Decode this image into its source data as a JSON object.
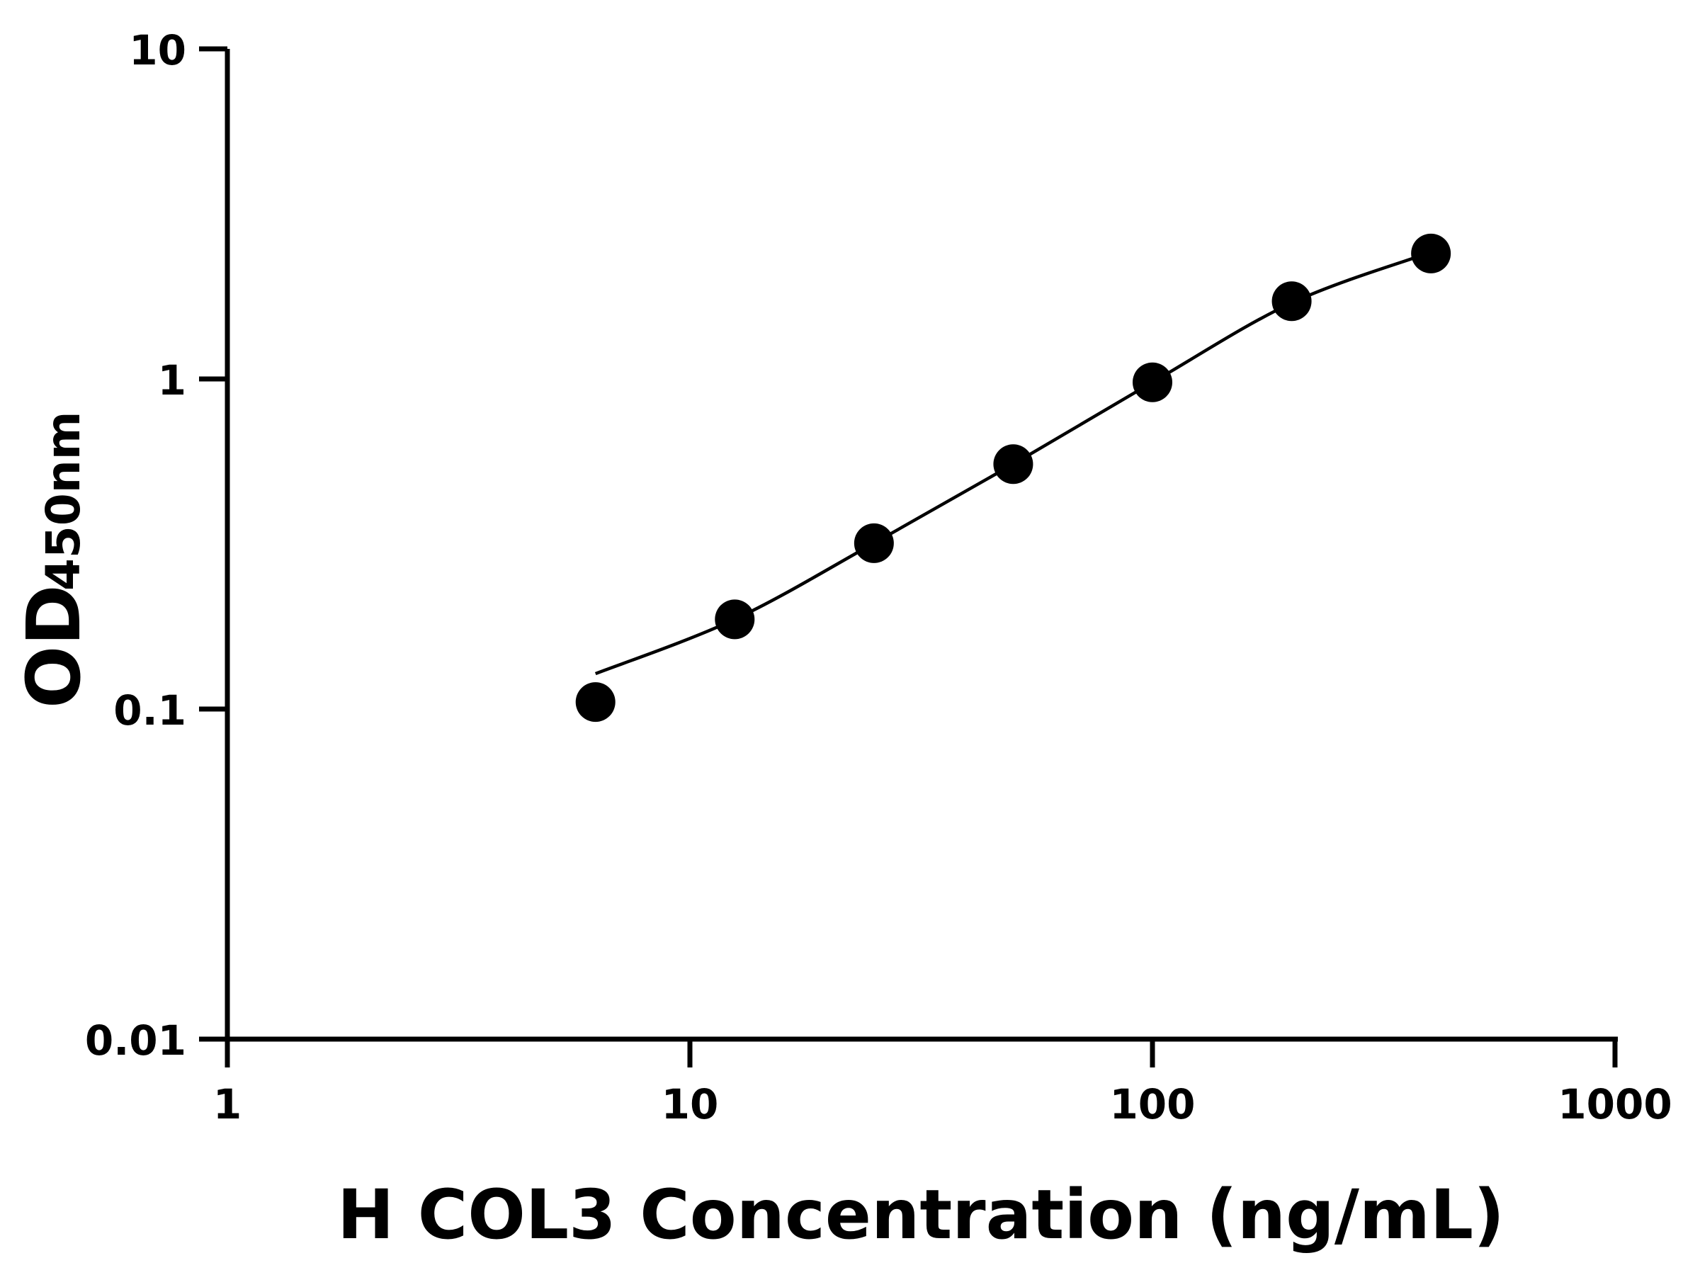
{
  "chart_data": {
    "type": "scatter",
    "title": "",
    "xlabel": "H COL3 Concentration (ng/mL)",
    "ylabel_main": "OD",
    "ylabel_sub": "450nm",
    "x_scale": "log",
    "y_scale": "log",
    "xlim": [
      1,
      1000
    ],
    "ylim": [
      0.01,
      10
    ],
    "x_ticks": [
      "1",
      "10",
      "100",
      "1000"
    ],
    "y_ticks": [
      "0.01",
      "0.1",
      "1",
      "10"
    ],
    "grid": false,
    "legend": "none",
    "color": "#000000",
    "points": [
      {
        "x": 6.25,
        "y": 0.105
      },
      {
        "x": 12.5,
        "y": 0.187
      },
      {
        "x": 25,
        "y": 0.318
      },
      {
        "x": 50,
        "y": 0.552
      },
      {
        "x": 100,
        "y": 0.977
      },
      {
        "x": 200,
        "y": 1.72
      },
      {
        "x": 400,
        "y": 2.4
      }
    ],
    "fit_curve": [
      {
        "x": 6.25,
        "y": 0.128
      },
      {
        "x": 12.5,
        "y": 0.187
      },
      {
        "x": 25,
        "y": 0.318
      },
      {
        "x": 50,
        "y": 0.552
      },
      {
        "x": 100,
        "y": 0.977
      },
      {
        "x": 200,
        "y": 1.7
      },
      {
        "x": 400,
        "y": 2.42
      }
    ]
  }
}
